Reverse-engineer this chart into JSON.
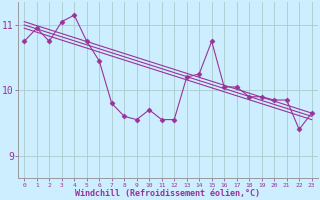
{
  "xlabel": "Windchill (Refroidissement éolien,°C)",
  "bg_color": "#cceeff",
  "line_color": "#993399",
  "grid_color": "#aacccc",
  "x_ticks": [
    0,
    1,
    2,
    3,
    4,
    5,
    6,
    7,
    8,
    9,
    10,
    11,
    12,
    13,
    14,
    15,
    16,
    17,
    18,
    19,
    20,
    21,
    22,
    23
  ],
  "y_ticks": [
    9,
    10,
    11
  ],
  "ylim": [
    8.65,
    11.35
  ],
  "xlim": [
    -0.5,
    23.5
  ],
  "data_y": [
    10.75,
    10.95,
    10.75,
    11.05,
    11.15,
    10.75,
    10.45,
    9.8,
    9.6,
    9.55,
    9.7,
    9.55,
    9.55,
    10.2,
    10.25,
    10.75,
    10.05,
    10.05,
    9.9,
    9.9,
    9.85,
    9.85,
    9.4,
    9.65
  ],
  "trend1_y": [
    11.05,
    9.65
  ],
  "trend2_y": [
    11.0,
    9.6
  ],
  "trend3_y": [
    10.95,
    9.55
  ]
}
